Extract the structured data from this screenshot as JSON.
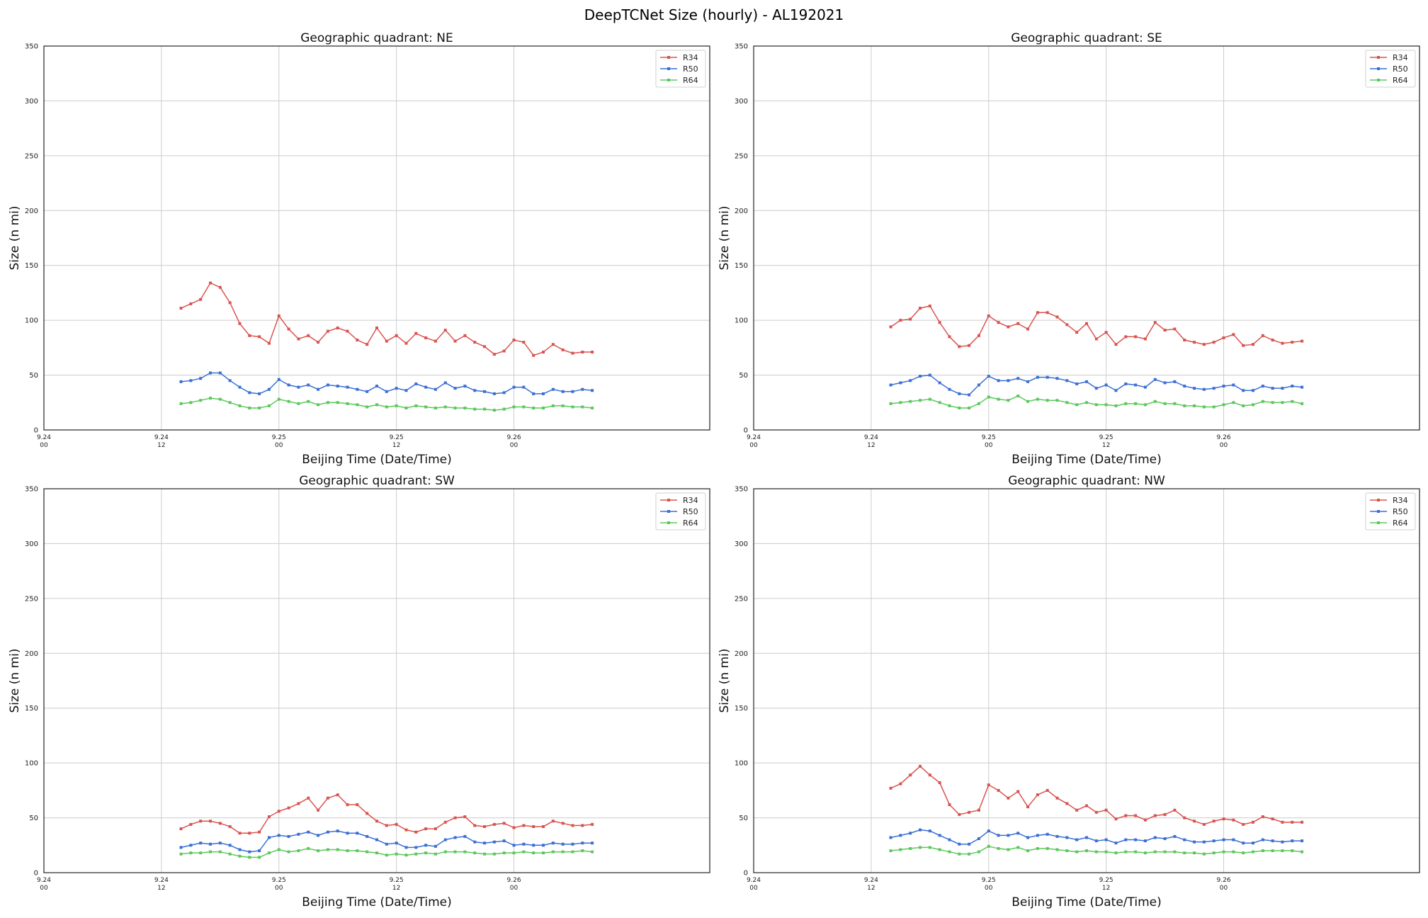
{
  "figure_title": "DeepTCNet Size (hourly) - AL192021",
  "colors": {
    "R34": "#d9534f",
    "R50": "#3b6fd4",
    "R64": "#5cc85c",
    "grid": "#cccccc"
  },
  "chart_data": [
    {
      "type": "line",
      "title": "Geographic quadrant: NE",
      "xlabel": "Beijing Time (Date/Time)",
      "ylabel": "Size (n mi)",
      "xlim": [
        "2021-09-24 00:00",
        "2021-09-26 20:00"
      ],
      "ylim": [
        0,
        350
      ],
      "yticks": [
        0,
        50,
        100,
        150,
        200,
        250,
        300,
        350
      ],
      "xticks": [
        {
          "date": "9.24",
          "time": "00"
        },
        {
          "date": "9.24",
          "time": "12"
        },
        {
          "date": "9.25",
          "time": "00"
        },
        {
          "date": "9.25",
          "time": "12"
        },
        {
          "date": "9.26",
          "time": "00"
        }
      ],
      "grid": true,
      "legend": "top-right",
      "x_start": "2021-09-24 14:00",
      "x_step_hours": 1,
      "series": [
        {
          "name": "R34",
          "values": [
            111,
            115,
            119,
            134,
            130,
            116,
            97,
            86,
            85,
            79,
            104,
            92,
            83,
            86,
            80,
            90,
            93,
            90,
            82,
            78,
            93,
            81,
            86,
            79,
            88,
            84,
            81,
            91,
            81,
            86,
            80,
            76,
            69,
            72,
            82,
            80,
            68,
            71,
            78,
            73,
            70,
            71,
            71
          ]
        },
        {
          "name": "R50",
          "values": [
            44,
            45,
            47,
            52,
            52,
            45,
            39,
            34,
            33,
            37,
            46,
            41,
            39,
            41,
            37,
            41,
            40,
            39,
            37,
            35,
            40,
            35,
            38,
            36,
            42,
            39,
            37,
            43,
            38,
            40,
            36,
            35,
            33,
            34,
            39,
            39,
            33,
            33,
            37,
            35,
            35,
            37,
            36
          ]
        },
        {
          "name": "R64",
          "values": [
            24,
            25,
            27,
            29,
            28,
            25,
            22,
            20,
            20,
            22,
            28,
            26,
            24,
            26,
            23,
            25,
            25,
            24,
            23,
            21,
            23,
            21,
            22,
            20,
            22,
            21,
            20,
            21,
            20,
            20,
            19,
            19,
            18,
            19,
            21,
            21,
            20,
            20,
            22,
            22,
            21,
            21,
            20
          ]
        }
      ]
    },
    {
      "type": "line",
      "title": "Geographic quadrant: SE",
      "xlabel": "Beijing Time (Date/Time)",
      "ylabel": "Size (n mi)",
      "xlim": [
        "2021-09-24 00:00",
        "2021-09-26 20:00"
      ],
      "ylim": [
        0,
        350
      ],
      "yticks": [
        0,
        50,
        100,
        150,
        200,
        250,
        300,
        350
      ],
      "xticks": [
        {
          "date": "9.24",
          "time": "00"
        },
        {
          "date": "9.24",
          "time": "12"
        },
        {
          "date": "9.25",
          "time": "00"
        },
        {
          "date": "9.25",
          "time": "12"
        },
        {
          "date": "9.26",
          "time": "00"
        }
      ],
      "grid": true,
      "legend": "top-right",
      "x_start": "2021-09-24 14:00",
      "x_step_hours": 1,
      "series": [
        {
          "name": "R34",
          "values": [
            94,
            100,
            101,
            111,
            113,
            98,
            85,
            76,
            77,
            86,
            104,
            98,
            94,
            97,
            92,
            107,
            107,
            103,
            96,
            89,
            97,
            83,
            89,
            78,
            85,
            85,
            83,
            98,
            91,
            92,
            82,
            80,
            78,
            80,
            84,
            87,
            77,
            78,
            86,
            82,
            79,
            80,
            81
          ]
        },
        {
          "name": "R50",
          "values": [
            41,
            43,
            45,
            49,
            50,
            43,
            37,
            33,
            32,
            41,
            49,
            45,
            45,
            47,
            44,
            48,
            48,
            47,
            45,
            42,
            44,
            38,
            41,
            36,
            42,
            41,
            39,
            46,
            43,
            44,
            40,
            38,
            37,
            38,
            40,
            41,
            36,
            36,
            40,
            38,
            38,
            40,
            39
          ]
        },
        {
          "name": "R64",
          "values": [
            24,
            25,
            26,
            27,
            28,
            25,
            22,
            20,
            20,
            24,
            30,
            28,
            27,
            31,
            26,
            28,
            27,
            27,
            25,
            23,
            25,
            23,
            23,
            22,
            24,
            24,
            23,
            26,
            24,
            24,
            22,
            22,
            21,
            21,
            23,
            25,
            22,
            23,
            26,
            25,
            25,
            26,
            24
          ]
        }
      ]
    },
    {
      "type": "line",
      "title": "Geographic quadrant: SW",
      "xlabel": "Beijing Time (Date/Time)",
      "ylabel": "Size (n mi)",
      "xlim": [
        "2021-09-24 00:00",
        "2021-09-26 20:00"
      ],
      "ylim": [
        0,
        350
      ],
      "yticks": [
        0,
        50,
        100,
        150,
        200,
        250,
        300,
        350
      ],
      "xticks": [
        {
          "date": "9.24",
          "time": "00"
        },
        {
          "date": "9.24",
          "time": "12"
        },
        {
          "date": "9.25",
          "time": "00"
        },
        {
          "date": "9.25",
          "time": "12"
        },
        {
          "date": "9.26",
          "time": "00"
        }
      ],
      "grid": true,
      "legend": "top-right",
      "x_start": "2021-09-24 14:00",
      "x_step_hours": 1,
      "series": [
        {
          "name": "R34",
          "values": [
            40,
            44,
            47,
            47,
            45,
            42,
            36,
            36,
            37,
            51,
            56,
            59,
            63,
            68,
            57,
            68,
            71,
            62,
            62,
            54,
            47,
            43,
            44,
            39,
            37,
            40,
            40,
            46,
            50,
            51,
            43,
            42,
            44,
            45,
            41,
            43,
            42,
            42,
            47,
            45,
            43,
            43,
            44
          ]
        },
        {
          "name": "R50",
          "values": [
            23,
            25,
            27,
            26,
            27,
            25,
            21,
            19,
            20,
            32,
            34,
            33,
            35,
            37,
            34,
            37,
            38,
            36,
            36,
            33,
            30,
            26,
            27,
            23,
            23,
            25,
            24,
            30,
            32,
            33,
            28,
            27,
            28,
            29,
            25,
            26,
            25,
            25,
            27,
            26,
            26,
            27,
            27
          ]
        },
        {
          "name": "R64",
          "values": [
            17,
            18,
            18,
            19,
            19,
            17,
            15,
            14,
            14,
            18,
            21,
            19,
            20,
            22,
            20,
            21,
            21,
            20,
            20,
            19,
            18,
            16,
            17,
            16,
            17,
            18,
            17,
            19,
            19,
            19,
            18,
            17,
            17,
            18,
            18,
            19,
            18,
            18,
            19,
            19,
            19,
            20,
            19
          ]
        }
      ]
    },
    {
      "type": "line",
      "title": "Geographic quadrant: NW",
      "xlabel": "Beijing Time (Date/Time)",
      "ylabel": "Size (n mi)",
      "xlim": [
        "2021-09-24 00:00",
        "2021-09-26 20:00"
      ],
      "ylim": [
        0,
        350
      ],
      "yticks": [
        0,
        50,
        100,
        150,
        200,
        250,
        300,
        350
      ],
      "xticks": [
        {
          "date": "9.24",
          "time": "00"
        },
        {
          "date": "9.24",
          "time": "12"
        },
        {
          "date": "9.25",
          "time": "00"
        },
        {
          "date": "9.25",
          "time": "12"
        },
        {
          "date": "9.26",
          "time": "00"
        }
      ],
      "grid": true,
      "legend": "top-right",
      "x_start": "2021-09-24 14:00",
      "x_step_hours": 1,
      "series": [
        {
          "name": "R34",
          "values": [
            77,
            81,
            89,
            97,
            89,
            82,
            62,
            53,
            55,
            57,
            80,
            75,
            68,
            74,
            60,
            71,
            75,
            68,
            63,
            57,
            61,
            55,
            57,
            49,
            52,
            52,
            48,
            52,
            53,
            57,
            50,
            47,
            44,
            47,
            49,
            48,
            44,
            46,
            51,
            49,
            46,
            46,
            46
          ]
        },
        {
          "name": "R50",
          "values": [
            32,
            34,
            36,
            39,
            38,
            34,
            30,
            26,
            26,
            31,
            38,
            34,
            34,
            36,
            32,
            34,
            35,
            33,
            32,
            30,
            32,
            29,
            30,
            27,
            30,
            30,
            29,
            32,
            31,
            33,
            30,
            28,
            28,
            29,
            30,
            30,
            27,
            27,
            30,
            29,
            28,
            29,
            29
          ]
        },
        {
          "name": "R64",
          "values": [
            20,
            21,
            22,
            23,
            23,
            21,
            19,
            17,
            17,
            19,
            24,
            22,
            21,
            23,
            20,
            22,
            22,
            21,
            20,
            19,
            20,
            19,
            19,
            18,
            19,
            19,
            18,
            19,
            19,
            19,
            18,
            18,
            17,
            18,
            19,
            19,
            18,
            19,
            20,
            20,
            20,
            20,
            19
          ]
        }
      ]
    }
  ]
}
